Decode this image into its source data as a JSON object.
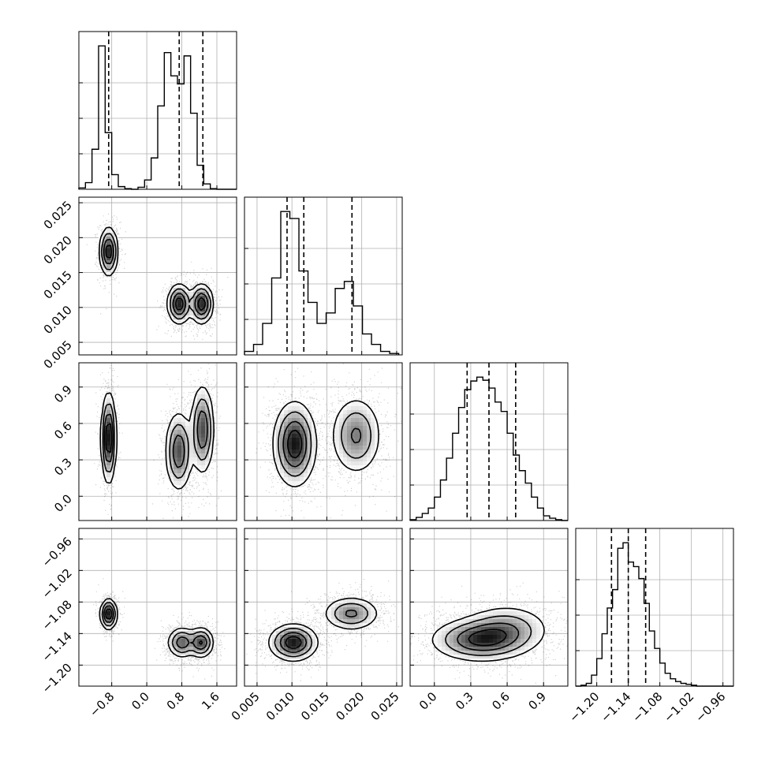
{
  "chart_data": {
    "type": "corner",
    "grid": true,
    "parameters": [
      {
        "key": "p0",
        "range": [
          -1.55,
          2.05
        ],
        "ticks": [
          -0.8,
          0.0,
          0.8,
          1.6
        ],
        "tick_labels": [
          "−0.8",
          "0.0",
          "0.8",
          "1.6"
        ],
        "quantiles": [
          -0.87,
          0.74,
          1.28
        ],
        "hist": {
          "bin_edges": [
            -1.55,
            -1.4,
            -1.25,
            -1.1,
            -0.95,
            -0.8,
            -0.65,
            -0.5,
            -0.35,
            -0.2,
            -0.05,
            0.1,
            0.25,
            0.4,
            0.55,
            0.7,
            0.85,
            1.0,
            1.15,
            1.3,
            1.45,
            1.6,
            1.75,
            1.9,
            2.05
          ],
          "counts": [
            2,
            10,
            60,
            215,
            85,
            22,
            4,
            1,
            0,
            3,
            14,
            47,
            125,
            205,
            170,
            158,
            200,
            114,
            36,
            8,
            1,
            0,
            0,
            0
          ]
        }
      },
      {
        "key": "p1",
        "range": [
          0.0032,
          0.0258
        ],
        "ticks": [
          0.005,
          0.01,
          0.015,
          0.02,
          0.025
        ],
        "tick_labels": [
          "0.005",
          "0.010",
          "0.015",
          "0.020",
          "0.025"
        ],
        "quantiles": [
          0.0093,
          0.0117,
          0.0186
        ],
        "hist": {
          "bin_edges": [
            0.0032,
            0.0045,
            0.0058,
            0.0071,
            0.0084,
            0.0097,
            0.011,
            0.0123,
            0.0136,
            0.0149,
            0.0162,
            0.0175,
            0.0188,
            0.0201,
            0.0214,
            0.0227,
            0.024,
            0.0253
          ],
          "counts": [
            5,
            15,
            45,
            110,
            205,
            195,
            120,
            75,
            45,
            60,
            95,
            105,
            70,
            30,
            15,
            5,
            2
          ]
        }
      },
      {
        "key": "p2",
        "range": [
          -0.2,
          1.1
        ],
        "ticks": [
          0.0,
          0.3,
          0.6,
          0.9
        ],
        "tick_labels": [
          "0.0",
          "0.3",
          "0.6",
          "0.9"
        ],
        "quantiles": [
          0.27,
          0.45,
          0.67
        ],
        "hist": {
          "bin_edges": [
            -0.2,
            -0.15,
            -0.1,
            -0.05,
            0.0,
            0.05,
            0.1,
            0.15,
            0.2,
            0.25,
            0.3,
            0.35,
            0.4,
            0.45,
            0.5,
            0.55,
            0.6,
            0.65,
            0.7,
            0.75,
            0.8,
            0.85,
            0.9,
            0.95,
            1.0,
            1.05,
            1.1
          ],
          "counts": [
            1,
            4,
            9,
            16,
            30,
            52,
            80,
            112,
            145,
            168,
            179,
            184,
            180,
            170,
            152,
            140,
            112,
            84,
            64,
            48,
            30,
            16,
            6,
            3,
            1,
            0
          ]
        }
      },
      {
        "key": "p3",
        "range": [
          -1.24,
          -0.94
        ],
        "ticks": [
          -1.2,
          -1.14,
          -1.08,
          -1.02,
          -0.96
        ],
        "tick_labels": [
          "−1.20",
          "−1.14",
          "−1.08",
          "−1.02",
          "−0.96"
        ],
        "quantiles": [
          -1.172,
          -1.14,
          -1.107
        ],
        "hist": {
          "bin_edges": [
            -1.24,
            -1.23,
            -1.22,
            -1.21,
            -1.2,
            -1.19,
            -1.18,
            -1.17,
            -1.16,
            -1.15,
            -1.14,
            -1.13,
            -1.12,
            -1.11,
            -1.1,
            -1.09,
            -1.08,
            -1.07,
            -1.06,
            -1.05,
            -1.04,
            -1.03,
            -1.02,
            -1.01,
            -1.0,
            -0.99,
            -0.98,
            -0.97,
            -0.96,
            -0.95,
            -0.94
          ],
          "counts": [
            0,
            1,
            3,
            12,
            30,
            57,
            85,
            105,
            150,
            156,
            135,
            130,
            117,
            90,
            60,
            41,
            25,
            14,
            8,
            5,
            3,
            2,
            1,
            0,
            0,
            0,
            0,
            0,
            0,
            0
          ]
        }
      }
    ],
    "pair_modes": [
      {
        "x": 0,
        "y": 1,
        "modes": [
          {
            "cx": -0.87,
            "cy": 0.018,
            "sx": 0.1,
            "sy": 0.0017,
            "w": 0.3,
            "rot": 0
          },
          {
            "cx": 0.74,
            "cy": 0.0105,
            "sx": 0.13,
            "sy": 0.0014,
            "w": 0.32,
            "rot": 0
          },
          {
            "cx": 1.25,
            "cy": 0.0105,
            "sx": 0.13,
            "sy": 0.0014,
            "w": 0.32,
            "rot": 0
          }
        ]
      },
      {
        "x": 0,
        "y": 2,
        "modes": [
          {
            "cx": -0.87,
            "cy": 0.48,
            "sx": 0.08,
            "sy": 0.18,
            "w": 0.3,
            "rot": 0
          },
          {
            "cx": 0.73,
            "cy": 0.37,
            "sx": 0.15,
            "sy": 0.16,
            "w": 0.35,
            "rot": 0.2
          },
          {
            "cx": 1.27,
            "cy": 0.55,
            "sx": 0.13,
            "sy": 0.18,
            "w": 0.35,
            "rot": 0.1
          }
        ]
      },
      {
        "x": 0,
        "y": 3,
        "modes": [
          {
            "cx": -0.87,
            "cy": -1.103,
            "sx": 0.09,
            "sy": 0.014,
            "w": 0.3,
            "rot": 0
          },
          {
            "cx": 0.8,
            "cy": -1.157,
            "sx": 0.16,
            "sy": 0.014,
            "w": 0.35,
            "rot": 0
          },
          {
            "cx": 1.24,
            "cy": -1.157,
            "sx": 0.14,
            "sy": 0.014,
            "w": 0.35,
            "rot": 0
          }
        ]
      },
      {
        "x": 1,
        "y": 2,
        "modes": [
          {
            "cx": 0.0104,
            "cy": 0.43,
            "sx": 0.0015,
            "sy": 0.17,
            "w": 0.6,
            "rot": 0
          },
          {
            "cx": 0.0192,
            "cy": 0.5,
            "sx": 0.0018,
            "sy": 0.16,
            "w": 0.4,
            "rot": 0
          }
        ]
      },
      {
        "x": 1,
        "y": 3,
        "modes": [
          {
            "cx": 0.0102,
            "cy": -1.157,
            "sx": 0.0017,
            "sy": 0.017,
            "w": 0.6,
            "rot": 0
          },
          {
            "cx": 0.0185,
            "cy": -1.102,
            "sx": 0.002,
            "sy": 0.016,
            "w": 0.4,
            "rot": 0
          }
        ]
      },
      {
        "x": 2,
        "y": 3,
        "modes": [
          {
            "cx": 0.38,
            "cy": -1.152,
            "sx": 0.2,
            "sy": 0.02,
            "w": 0.65,
            "rot": 0
          },
          {
            "cx": 0.6,
            "cy": -1.13,
            "sx": 0.18,
            "sy": 0.023,
            "w": 0.35,
            "rot": 0
          }
        ]
      }
    ]
  }
}
